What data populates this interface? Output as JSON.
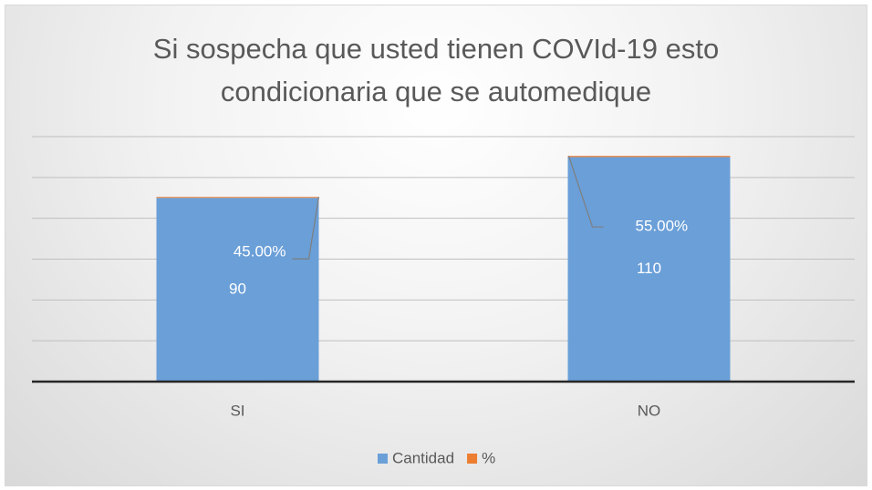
{
  "chart_data": {
    "type": "bar",
    "stacked": true,
    "title": "Si sospecha que usted tienen COVId-19 esto condicionaria que se automedique",
    "categories": [
      "SI",
      "NO"
    ],
    "series": [
      {
        "name": "Cantidad",
        "color": "#6a9fd8",
        "values": [
          90,
          110
        ]
      },
      {
        "name": "%",
        "color": "#ed7d31",
        "values": [
          0.45,
          0.55
        ],
        "value_labels": [
          "45.00%",
          "55.00%"
        ]
      }
    ],
    "ylim": [
      0,
      120
    ],
    "yticks": [
      0,
      20,
      40,
      60,
      80,
      100,
      120
    ],
    "grid": true,
    "legend": "bottom"
  }
}
